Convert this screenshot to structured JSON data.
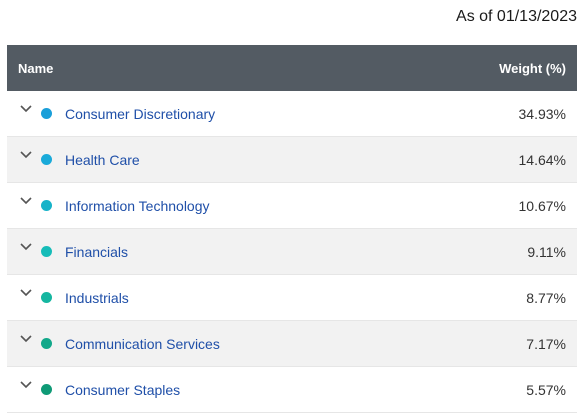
{
  "as_of": "As of 01/13/2023",
  "table": {
    "headers": {
      "name": "Name",
      "weight": "Weight (%)"
    },
    "rows": [
      {
        "name": "Consumer Discretionary",
        "weight": "34.93%",
        "color": "#1a9fd9"
      },
      {
        "name": "Health Care",
        "weight": "14.64%",
        "color": "#1aaad9"
      },
      {
        "name": "Information Technology",
        "weight": "10.67%",
        "color": "#17b3c9"
      },
      {
        "name": "Financials",
        "weight": "9.11%",
        "color": "#16bcb8"
      },
      {
        "name": "Industrials",
        "weight": "8.77%",
        "color": "#15b6a0"
      },
      {
        "name": "Communication Services",
        "weight": "7.17%",
        "color": "#12a88a"
      },
      {
        "name": "Consumer Staples",
        "weight": "5.57%",
        "color": "#0f9a76"
      }
    ]
  },
  "icons": {
    "expand": "chevron-down-icon"
  },
  "colors": {
    "header_bg": "#535b63",
    "link": "#1f4fa8",
    "alt_row": "#f2f2f2"
  }
}
